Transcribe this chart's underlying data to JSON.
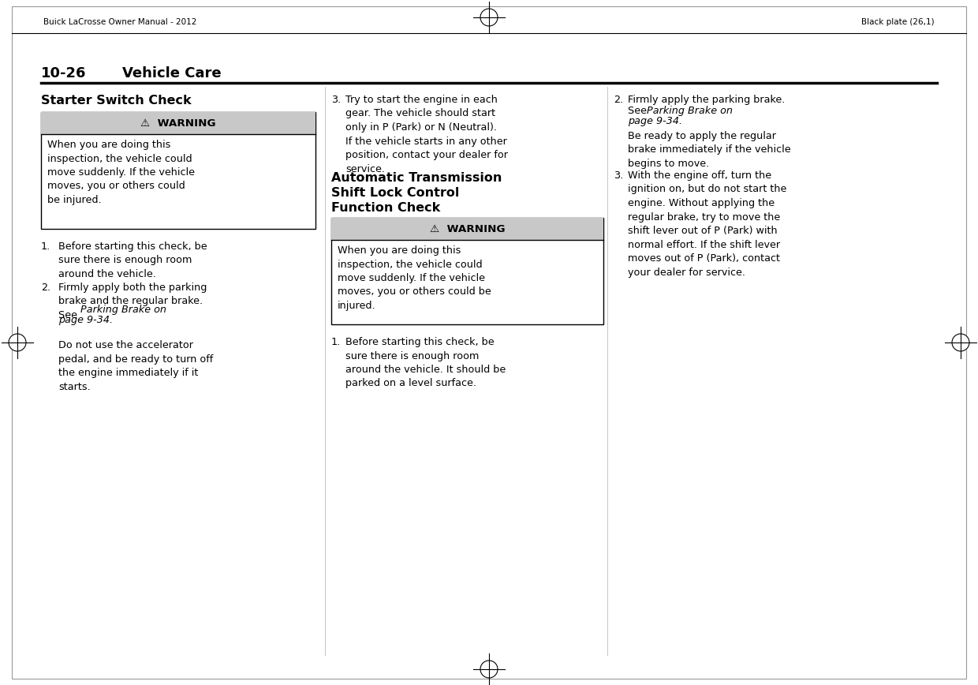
{
  "bg_color": "#ffffff",
  "header_left": "Buick LaCrosse Owner Manual - 2012",
  "header_right": "Black plate (26,1)",
  "section_heading_num": "10-26",
  "section_heading_text": "Vehicle Care",
  "col1_title": "Starter Switch Check",
  "warning1_header": "⚠  WARNING",
  "warning1_body": "When you are doing this\ninspection, the vehicle could\nmove suddenly. If the vehicle\nmoves, you or others could\nbe injured.",
  "col2_item3_num": "3.",
  "col2_item3_body": "Try to start the engine in each\ngear. The vehicle should start\nonly in P (Park) or N (Neutral).\nIf the vehicle starts in any other\nposition, contact your dealer for\nservice.",
  "col2_title": "Automatic Transmission\nShift Lock Control\nFunction Check",
  "warning2_header": "⚠  WARNING",
  "warning2_body": "When you are doing this\ninspection, the vehicle could\nmove suddenly. If the vehicle\nmoves, you or others could be\ninjured.",
  "col2_item1_num": "1.",
  "col2_item1_body": "Before starting this check, be\nsure there is enough room\naround the vehicle. It should be\nparked on a level surface.",
  "col3_item2_num": "2.",
  "col3_item2_body1": "Firmly apply the parking brake.\nSee ",
  "col3_item2_italic": "Parking Brake on\npage 9-34.",
  "col3_item2_body2": "\nBe ready to apply the regular\nbrake immediately if the vehicle\nbegins to move.",
  "col3_item3_num": "3.",
  "col3_item3_body": "With the engine off, turn the\nignition on, but do not start the\nengine. Without applying the\nregular brake, try to move the\nshift lever out of P (Park) with\nnormal effort. If the shift lever\nmoves out of P (Park), contact\nyour dealer for service.",
  "warning_bg": "#c8c8c8",
  "warning_border": "#000000",
  "text_color": "#000000",
  "col1_item1_num": "1.",
  "col1_item1_body": "Before starting this check, be\nsure there is enough room\naround the vehicle.",
  "col1_item2_num": "2.",
  "col1_item2_body1": "Firmly apply both the parking\nbrake and the regular brake.\nSee ",
  "col1_item2_italic": "Parking Brake on\npage 9-34.",
  "col1_item2_body2": "Do not use the accelerator\npedal, and be ready to turn off\nthe engine immediately if it\nstarts."
}
